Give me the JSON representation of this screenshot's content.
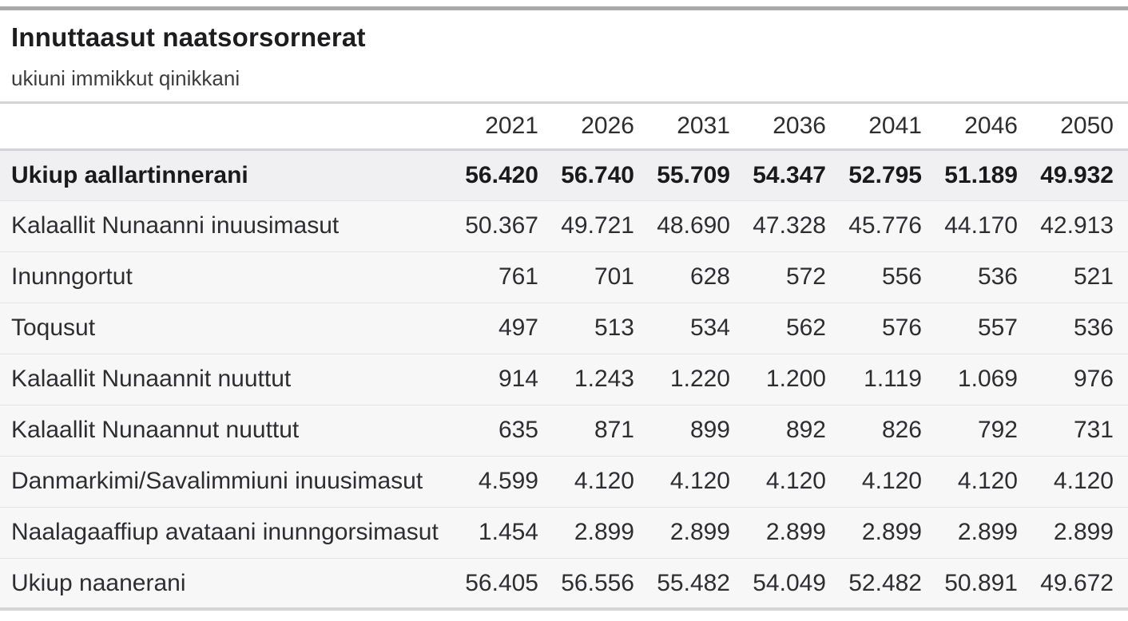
{
  "header": {
    "title": "Innuttaasut naatsorsornerat",
    "subtitle": "ukiuni immikkut qinikkani"
  },
  "table": {
    "corner_label": "",
    "year_columns": [
      "2021",
      "2026",
      "2031",
      "2036",
      "2041",
      "2046",
      "2050"
    ],
    "rows": [
      {
        "label": "Ukiup aallartinnerani",
        "bold": true,
        "values": [
          "56.420",
          "56.740",
          "55.709",
          "54.347",
          "52.795",
          "51.189",
          "49.932"
        ]
      },
      {
        "label": "Kalaallit Nunaanni inuusimasut",
        "bold": false,
        "values": [
          "50.367",
          "49.721",
          "48.690",
          "47.328",
          "45.776",
          "44.170",
          "42.913"
        ]
      },
      {
        "label": "Inunngortut",
        "bold": false,
        "values": [
          "761",
          "701",
          "628",
          "572",
          "556",
          "536",
          "521"
        ]
      },
      {
        "label": "Toqusut",
        "bold": false,
        "values": [
          "497",
          "513",
          "534",
          "562",
          "576",
          "557",
          "536"
        ]
      },
      {
        "label": "Kalaallit Nunaannit nuuttut",
        "bold": false,
        "values": [
          "914",
          "1.243",
          "1.220",
          "1.200",
          "1.119",
          "1.069",
          "976"
        ]
      },
      {
        "label": "Kalaallit Nunaannut nuuttut",
        "bold": false,
        "values": [
          "635",
          "871",
          "899",
          "892",
          "826",
          "792",
          "731"
        ]
      },
      {
        "label": "Danmarkimi/Savalimmiuni inuusimasut",
        "bold": false,
        "values": [
          "4.599",
          "4.120",
          "4.120",
          "4.120",
          "4.120",
          "4.120",
          "4.120"
        ]
      },
      {
        "label": "Naalagaaffiup avataani inunngorsimasut",
        "bold": false,
        "values": [
          "1.454",
          "2.899",
          "2.899",
          "2.899",
          "2.899",
          "2.899",
          "2.899"
        ]
      },
      {
        "label": "Ukiup naanerani",
        "bold": false,
        "values": [
          "56.405",
          "56.556",
          "55.482",
          "54.049",
          "52.482",
          "50.891",
          "49.672"
        ]
      }
    ]
  },
  "chart_data": {
    "type": "table",
    "title": "Innuttaasut naatsorsornerat",
    "subtitle": "ukiuni immikkut qinikkani",
    "columns": [
      2021,
      2026,
      2031,
      2036,
      2041,
      2046,
      2050
    ],
    "rows": [
      {
        "label": "Ukiup aallartinnerani",
        "values": [
          56420,
          56740,
          55709,
          54347,
          52795,
          51189,
          49932
        ]
      },
      {
        "label": "Kalaallit Nunaanni inuusimasut",
        "values": [
          50367,
          49721,
          48690,
          47328,
          45776,
          44170,
          42913
        ]
      },
      {
        "label": "Inunngortut",
        "values": [
          761,
          701,
          628,
          572,
          556,
          536,
          521
        ]
      },
      {
        "label": "Toqusut",
        "values": [
          497,
          513,
          534,
          562,
          576,
          557,
          536
        ]
      },
      {
        "label": "Kalaallit Nunaannit nuuttut",
        "values": [
          914,
          1243,
          1220,
          1200,
          1119,
          1069,
          976
        ]
      },
      {
        "label": "Kalaallit Nunaannut nuuttut",
        "values": [
          635,
          871,
          899,
          892,
          826,
          792,
          731
        ]
      },
      {
        "label": "Danmarkimi/Savalimmiuni inuusimasut",
        "values": [
          4599,
          4120,
          4120,
          4120,
          4120,
          4120,
          4120
        ]
      },
      {
        "label": "Naalagaaffiup avataani inunngorsimasut",
        "values": [
          1454,
          2899,
          2899,
          2899,
          2899,
          2899,
          2899
        ]
      },
      {
        "label": "Ukiup naanerani",
        "values": [
          56405,
          56556,
          55482,
          54049,
          52482,
          50891,
          49672
        ]
      }
    ],
    "number_format": "thousands separated by period",
    "layout": {
      "highlight_first_row": true,
      "value_alignment": "right"
    }
  },
  "colors": {
    "top_bar": "#a9a9ab",
    "divider": "#d4d4d6",
    "row_separator": "#e4e4e6",
    "row_background": "#f7f7f8",
    "highlight_row_background": "#f0f0f2",
    "title_text": "#1d1d1f",
    "body_text": "#2e2e30"
  }
}
